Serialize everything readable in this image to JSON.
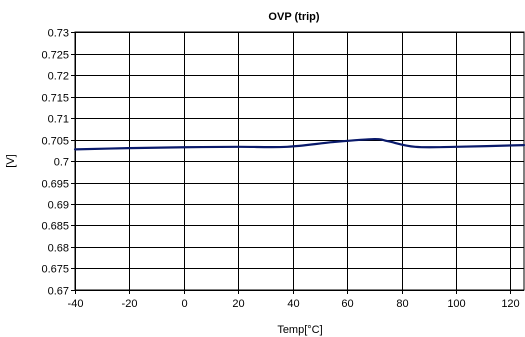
{
  "chart_data": {
    "type": "line",
    "title": "OVP (trip)",
    "xlabel": "Temp[°C]",
    "ylabel": "[V]",
    "xlim": [
      -40,
      125
    ],
    "ylim": [
      0.67,
      0.73
    ],
    "x_ticks": [
      "-40",
      "-20",
      "0",
      "20",
      "40",
      "60",
      "80",
      "100",
      "120"
    ],
    "y_ticks": [
      "0.73",
      "0.725",
      "0.72",
      "0.715",
      "0.71",
      "0.705",
      "0.7",
      "0.695",
      "0.69",
      "0.685",
      "0.68",
      "0.675",
      "0.67"
    ],
    "grid": true,
    "series": [
      {
        "color": "#0a1a6b",
        "x": [
          -40,
          -20,
          0,
          20,
          38,
          55,
          70,
          75,
          85,
          100,
          125
        ],
        "y": [
          0.7027,
          0.703,
          0.7032,
          0.7033,
          0.7033,
          0.7044,
          0.7051,
          0.7046,
          0.7033,
          0.7033,
          0.7037
        ]
      }
    ]
  }
}
